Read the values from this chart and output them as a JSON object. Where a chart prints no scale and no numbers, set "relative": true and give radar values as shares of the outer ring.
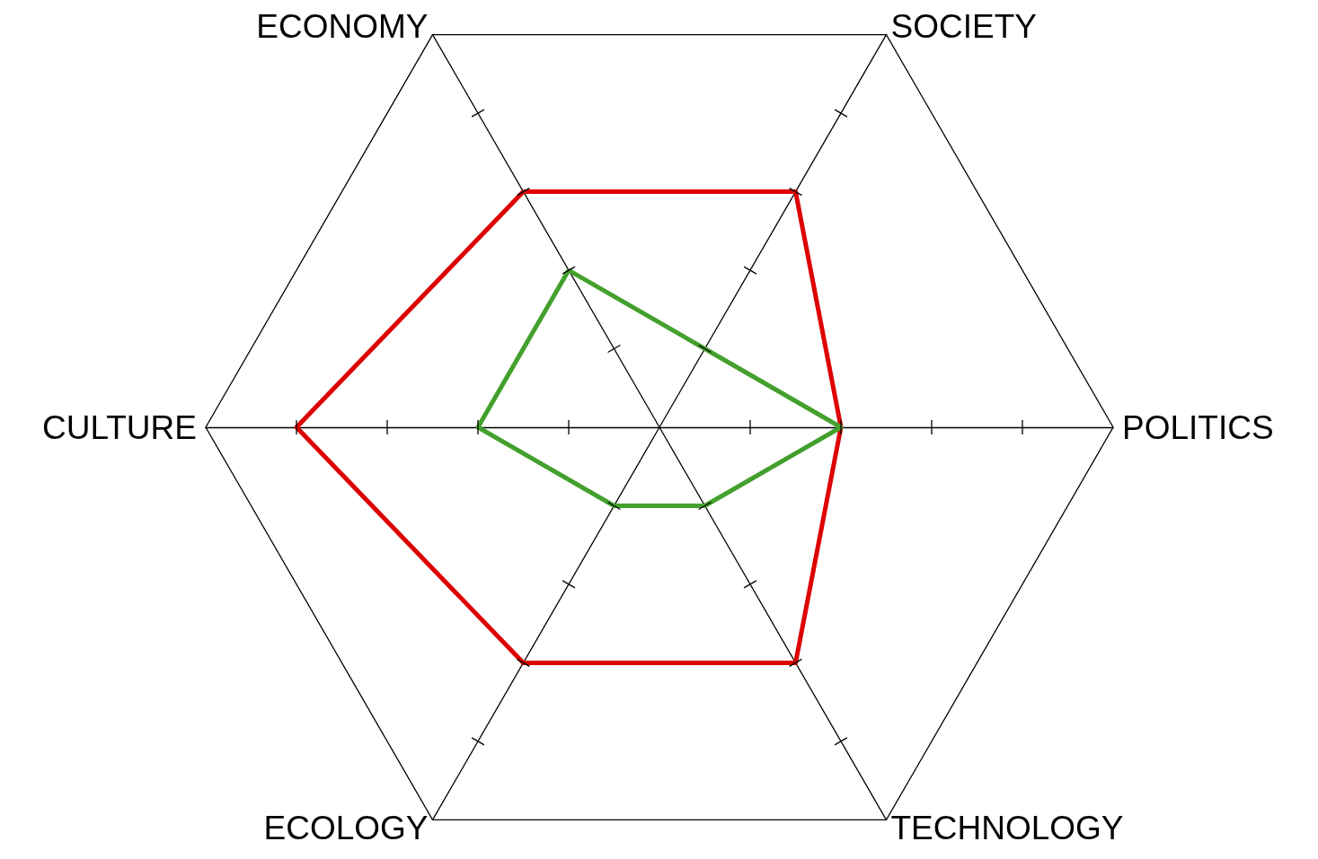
{
  "chart_data": {
    "type": "radar",
    "relative": true,
    "categories": [
      "SOCIETY",
      "POLITICS",
      "TECHNOLOGY",
      "ECOLOGY",
      "CULTURE",
      "ECONOMY"
    ],
    "series": [
      {
        "color": "#dd0000",
        "values": [
          0.6,
          0.4,
          0.6,
          0.6,
          0.8,
          0.6
        ]
      },
      {
        "color": "#44a02c",
        "values": [
          0.2,
          0.4,
          0.2,
          0.2,
          0.4,
          0.4
        ]
      }
    ]
  }
}
